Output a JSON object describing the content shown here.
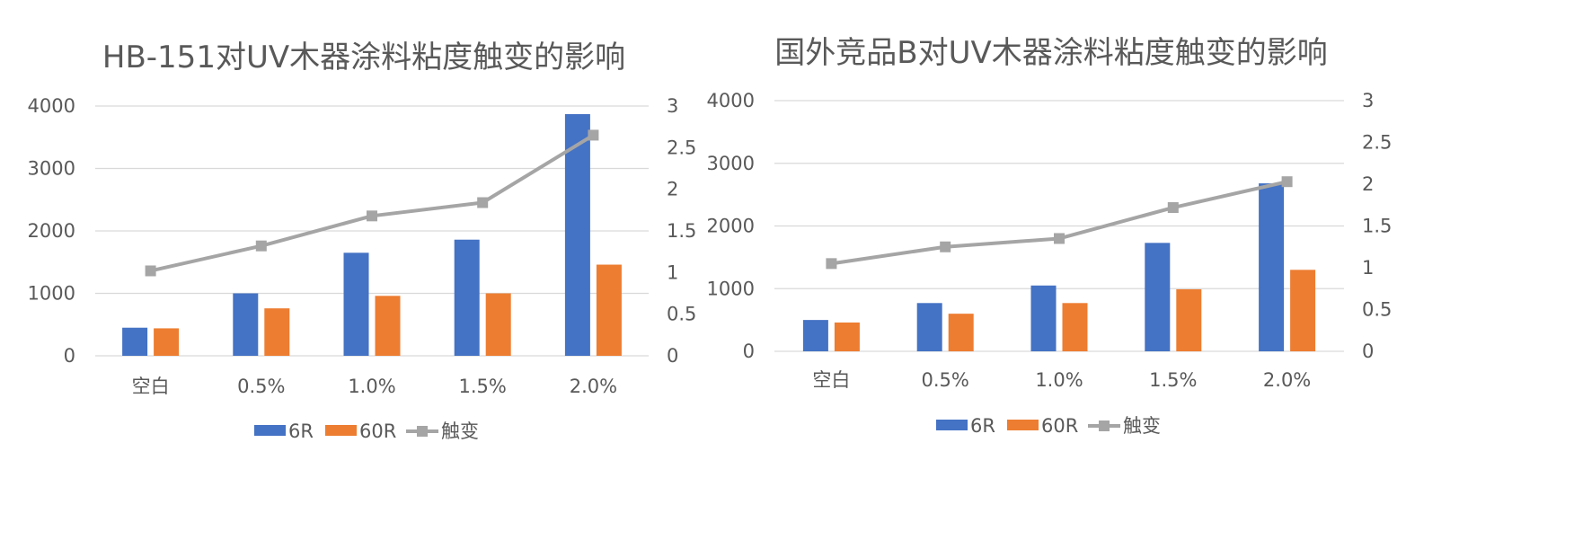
{
  "colors": {
    "series_6R": "#4472C4",
    "series_60R": "#ED7D31",
    "series_thixotropy": "#A5A5A5",
    "text": "#595959",
    "grid": "#D9D9D9"
  },
  "chart_data": [
    {
      "type": "bar",
      "title": "HB-151对UV木器涂料粘度触变的影响",
      "categories": [
        "空白",
        "0.5%",
        "1.0%",
        "1.5%",
        "2.0%"
      ],
      "y_ticks": [
        "0",
        "1000",
        "2000",
        "3000",
        "4000"
      ],
      "y2_ticks": [
        "0",
        "0.5",
        "1",
        "1.5",
        "2",
        "2.5",
        "3"
      ],
      "ylim": [
        0,
        4000
      ],
      "y2lim": [
        0,
        3
      ],
      "grid": true,
      "legend_position": "bottom",
      "series": [
        {
          "name": "6R",
          "type": "bar",
          "axis": "left",
          "values": [
            450,
            1000,
            1650,
            1860,
            3870
          ]
        },
        {
          "name": "60R",
          "type": "bar",
          "axis": "left",
          "values": [
            440,
            760,
            960,
            1000,
            1460
          ]
        },
        {
          "name": "触变",
          "type": "line",
          "axis": "right",
          "values": [
            1.02,
            1.32,
            1.68,
            1.84,
            2.65
          ]
        }
      ]
    },
    {
      "type": "bar",
      "title": "国外竞品B对UV木器涂料粘度触变的影响",
      "categories": [
        "空白",
        "0.5%",
        "1.0%",
        "1.5%",
        "2.0%"
      ],
      "y_ticks": [
        "0",
        "1000",
        "2000",
        "3000",
        "4000"
      ],
      "y2_ticks": [
        "0",
        "0.5",
        "1",
        "1.5",
        "2",
        "2.5",
        "3"
      ],
      "ylim": [
        0,
        4000
      ],
      "y2lim": [
        0,
        3
      ],
      "grid": true,
      "legend_position": "bottom",
      "series": [
        {
          "name": "6R",
          "type": "bar",
          "axis": "left",
          "values": [
            500,
            770,
            1050,
            1730,
            2680
          ]
        },
        {
          "name": "60R",
          "type": "bar",
          "axis": "left",
          "values": [
            460,
            600,
            770,
            990,
            1300
          ]
        },
        {
          "name": "触变",
          "type": "line",
          "axis": "right",
          "values": [
            1.05,
            1.25,
            1.35,
            1.72,
            2.03
          ]
        }
      ]
    }
  ]
}
